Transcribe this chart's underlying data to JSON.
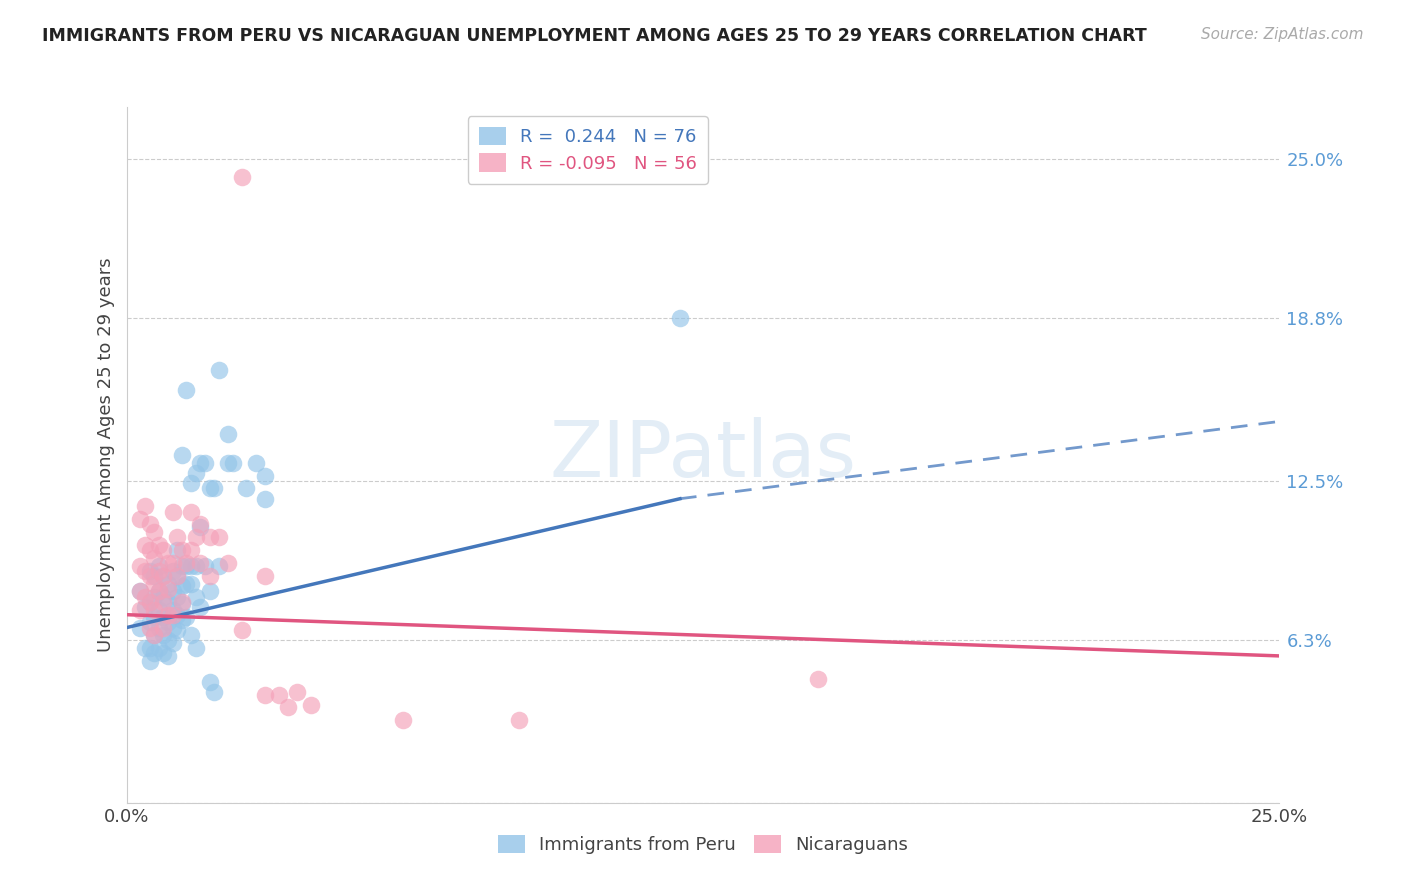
{
  "title": "IMMIGRANTS FROM PERU VS NICARAGUAN UNEMPLOYMENT AMONG AGES 25 TO 29 YEARS CORRELATION CHART",
  "source": "Source: ZipAtlas.com",
  "ylabel": "Unemployment Among Ages 25 to 29 years",
  "xlim": [
    0.0,
    0.25
  ],
  "ylim": [
    0.0,
    0.27
  ],
  "blue_color": "#93c4e8",
  "pink_color": "#f4a0b8",
  "blue_line_color": "#4477bb",
  "pink_line_color": "#e05580",
  "blue_line_solid_end": 0.12,
  "blue_line_x0": 0.0,
  "blue_line_y0": 0.068,
  "blue_line_y_at_solid_end": 0.118,
  "blue_line_y_at_dashed_end": 0.148,
  "pink_line_y0": 0.073,
  "pink_line_y_end": 0.057,
  "ytick_vals": [
    0.0,
    0.063,
    0.125,
    0.188,
    0.25
  ],
  "ytick_labels": [
    "",
    "6.3%",
    "12.5%",
    "18.8%",
    "25.0%"
  ],
  "xtick_vals": [
    0.0,
    0.25
  ],
  "xtick_labels": [
    "0.0%",
    "25.0%"
  ],
  "peru_points": [
    [
      0.003,
      0.082
    ],
    [
      0.003,
      0.068
    ],
    [
      0.004,
      0.076
    ],
    [
      0.004,
      0.06
    ],
    [
      0.005,
      0.09
    ],
    [
      0.005,
      0.078
    ],
    [
      0.005,
      0.07
    ],
    [
      0.005,
      0.06
    ],
    [
      0.005,
      0.055
    ],
    [
      0.006,
      0.088
    ],
    [
      0.006,
      0.08
    ],
    [
      0.006,
      0.072
    ],
    [
      0.006,
      0.065
    ],
    [
      0.006,
      0.058
    ],
    [
      0.007,
      0.092
    ],
    [
      0.007,
      0.082
    ],
    [
      0.007,
      0.075
    ],
    [
      0.007,
      0.068
    ],
    [
      0.007,
      0.06
    ],
    [
      0.008,
      0.088
    ],
    [
      0.008,
      0.08
    ],
    [
      0.008,
      0.072
    ],
    [
      0.008,
      0.065
    ],
    [
      0.008,
      0.058
    ],
    [
      0.009,
      0.085
    ],
    [
      0.009,
      0.078
    ],
    [
      0.009,
      0.07
    ],
    [
      0.009,
      0.063
    ],
    [
      0.009,
      0.057
    ],
    [
      0.01,
      0.09
    ],
    [
      0.01,
      0.082
    ],
    [
      0.01,
      0.075
    ],
    [
      0.01,
      0.068
    ],
    [
      0.01,
      0.062
    ],
    [
      0.011,
      0.098
    ],
    [
      0.011,
      0.088
    ],
    [
      0.011,
      0.08
    ],
    [
      0.011,
      0.073
    ],
    [
      0.011,
      0.067
    ],
    [
      0.012,
      0.135
    ],
    [
      0.012,
      0.092
    ],
    [
      0.012,
      0.084
    ],
    [
      0.012,
      0.077
    ],
    [
      0.012,
      0.071
    ],
    [
      0.013,
      0.16
    ],
    [
      0.013,
      0.092
    ],
    [
      0.013,
      0.085
    ],
    [
      0.013,
      0.072
    ],
    [
      0.014,
      0.124
    ],
    [
      0.014,
      0.092
    ],
    [
      0.014,
      0.085
    ],
    [
      0.014,
      0.065
    ],
    [
      0.015,
      0.128
    ],
    [
      0.015,
      0.092
    ],
    [
      0.015,
      0.08
    ],
    [
      0.015,
      0.06
    ],
    [
      0.016,
      0.132
    ],
    [
      0.016,
      0.107
    ],
    [
      0.016,
      0.076
    ],
    [
      0.017,
      0.132
    ],
    [
      0.017,
      0.092
    ],
    [
      0.018,
      0.122
    ],
    [
      0.018,
      0.082
    ],
    [
      0.018,
      0.047
    ],
    [
      0.019,
      0.122
    ],
    [
      0.019,
      0.043
    ],
    [
      0.02,
      0.168
    ],
    [
      0.02,
      0.092
    ],
    [
      0.022,
      0.143
    ],
    [
      0.022,
      0.132
    ],
    [
      0.023,
      0.132
    ],
    [
      0.026,
      0.122
    ],
    [
      0.028,
      0.132
    ],
    [
      0.03,
      0.127
    ],
    [
      0.03,
      0.118
    ],
    [
      0.12,
      0.188
    ]
  ],
  "nic_points": [
    [
      0.003,
      0.11
    ],
    [
      0.003,
      0.092
    ],
    [
      0.003,
      0.082
    ],
    [
      0.003,
      0.075
    ],
    [
      0.004,
      0.115
    ],
    [
      0.004,
      0.1
    ],
    [
      0.004,
      0.09
    ],
    [
      0.004,
      0.08
    ],
    [
      0.005,
      0.108
    ],
    [
      0.005,
      0.098
    ],
    [
      0.005,
      0.088
    ],
    [
      0.005,
      0.078
    ],
    [
      0.005,
      0.068
    ],
    [
      0.006,
      0.105
    ],
    [
      0.006,
      0.095
    ],
    [
      0.006,
      0.085
    ],
    [
      0.006,
      0.075
    ],
    [
      0.006,
      0.065
    ],
    [
      0.007,
      0.1
    ],
    [
      0.007,
      0.09
    ],
    [
      0.007,
      0.082
    ],
    [
      0.008,
      0.098
    ],
    [
      0.008,
      0.088
    ],
    [
      0.008,
      0.078
    ],
    [
      0.008,
      0.068
    ],
    [
      0.009,
      0.093
    ],
    [
      0.009,
      0.083
    ],
    [
      0.009,
      0.073
    ],
    [
      0.01,
      0.113
    ],
    [
      0.01,
      0.093
    ],
    [
      0.01,
      0.073
    ],
    [
      0.011,
      0.103
    ],
    [
      0.011,
      0.088
    ],
    [
      0.012,
      0.098
    ],
    [
      0.012,
      0.078
    ],
    [
      0.013,
      0.093
    ],
    [
      0.014,
      0.113
    ],
    [
      0.014,
      0.098
    ],
    [
      0.015,
      0.103
    ],
    [
      0.016,
      0.108
    ],
    [
      0.016,
      0.093
    ],
    [
      0.018,
      0.103
    ],
    [
      0.018,
      0.088
    ],
    [
      0.02,
      0.103
    ],
    [
      0.022,
      0.093
    ],
    [
      0.025,
      0.243
    ],
    [
      0.025,
      0.067
    ],
    [
      0.03,
      0.088
    ],
    [
      0.03,
      0.042
    ],
    [
      0.033,
      0.042
    ],
    [
      0.035,
      0.037
    ],
    [
      0.037,
      0.043
    ],
    [
      0.04,
      0.038
    ],
    [
      0.06,
      0.032
    ],
    [
      0.085,
      0.032
    ],
    [
      0.15,
      0.048
    ]
  ]
}
